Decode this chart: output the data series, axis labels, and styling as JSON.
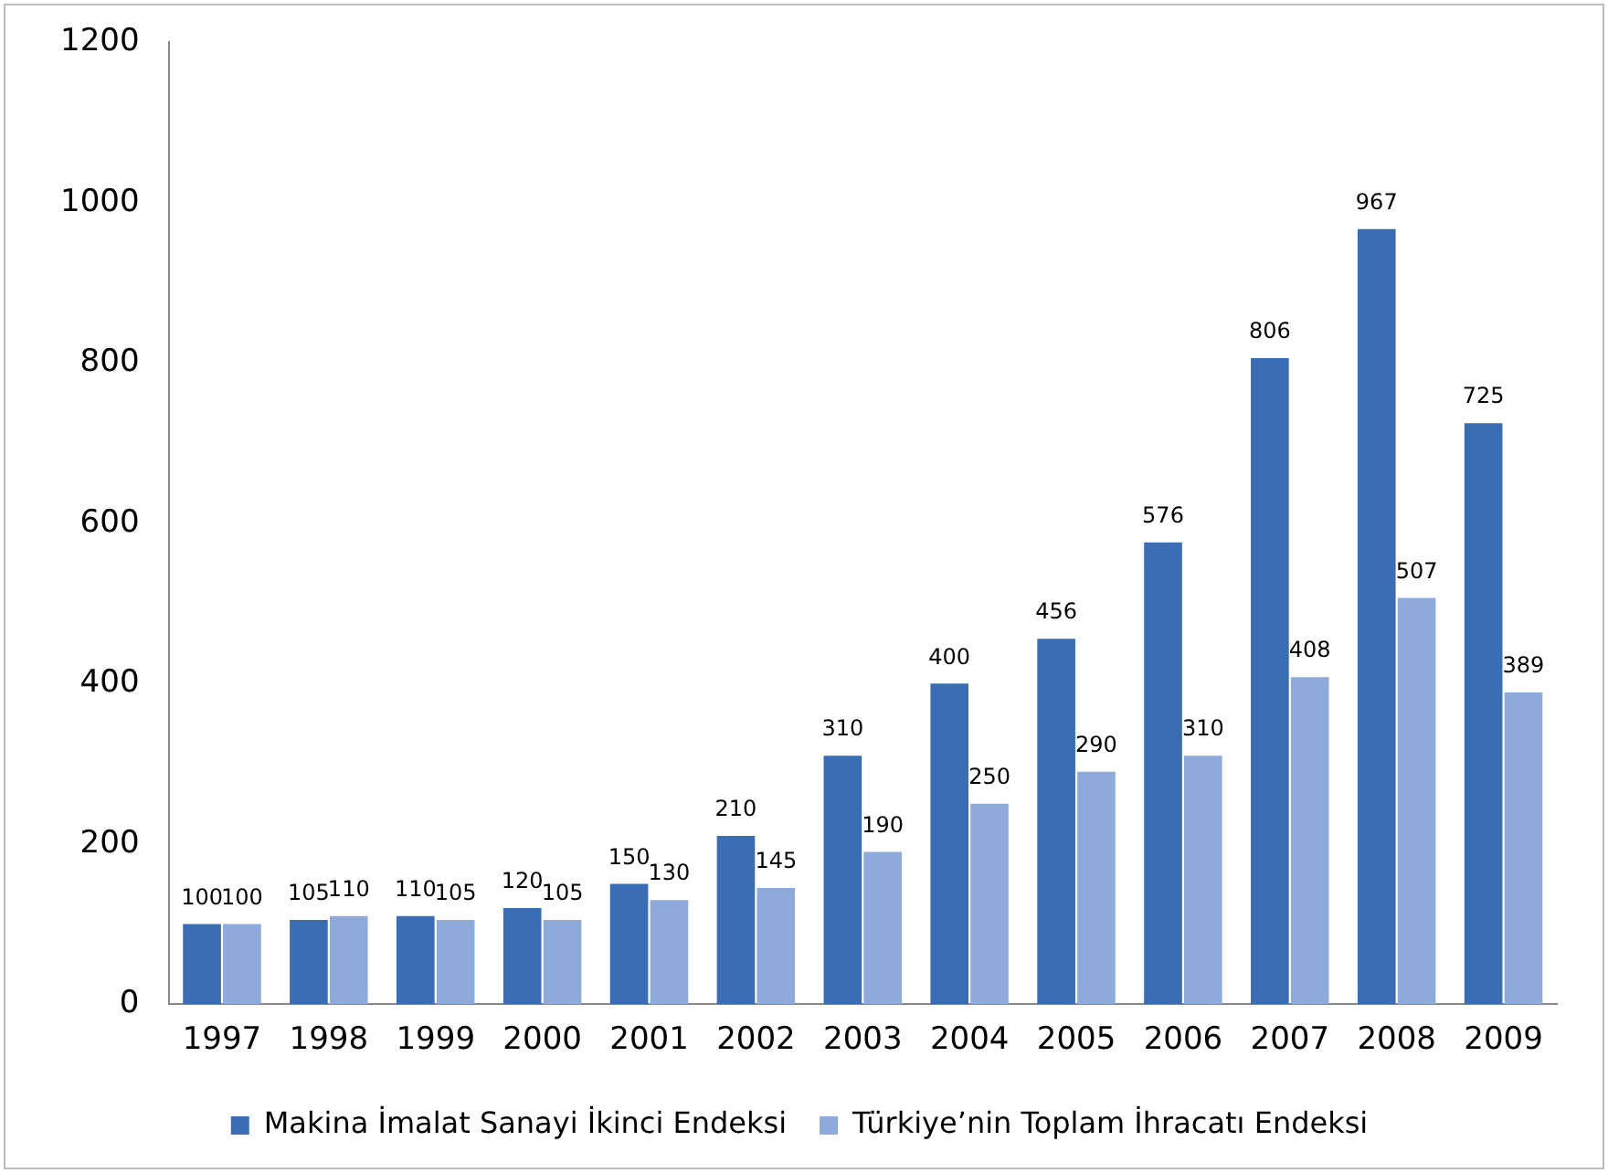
{
  "chart_data": {
    "type": "bar",
    "categories": [
      "1997",
      "1998",
      "1999",
      "2000",
      "2001",
      "2002",
      "2003",
      "2004",
      "2005",
      "2006",
      "2007",
      "2008",
      "2009"
    ],
    "series": [
      {
        "name": "Makina İmalat Sanayi İkinci Endeksi",
        "color": "#3b6db4",
        "values": [
          100,
          105,
          110,
          120,
          150,
          210,
          310,
          400,
          456,
          576,
          806,
          967,
          725
        ]
      },
      {
        "name": "Türkiye’nin Toplam İhracatı Endeksi",
        "color": "#8eaadb",
        "values": [
          100,
          110,
          105,
          105,
          130,
          145,
          190,
          250,
          290,
          310,
          408,
          507,
          389
        ]
      }
    ],
    "ylim": [
      0,
      1200
    ],
    "yticks": [
      0,
      200,
      400,
      600,
      800,
      1000,
      1200
    ],
    "grid": false,
    "legend": "bottom",
    "data_labels": true
  }
}
